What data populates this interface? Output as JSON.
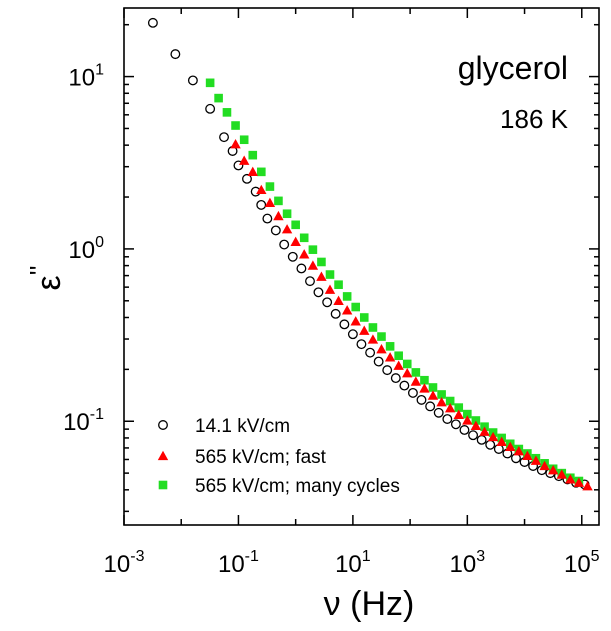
{
  "chart_data": {
    "type": "scatter",
    "xscale": "log",
    "yscale": "log",
    "xlim": [
      0.001,
      200000
    ],
    "ylim": [
      0.025,
      25
    ],
    "xticks": [
      {
        "value": 0.001,
        "base": "10",
        "exp": "-3"
      },
      {
        "value": 0.1,
        "base": "10",
        "exp": "-1"
      },
      {
        "value": 10,
        "base": "10",
        "exp": "1"
      },
      {
        "value": 1000,
        "base": "10",
        "exp": "3"
      },
      {
        "value": 100000,
        "base": "10",
        "exp": "5"
      }
    ],
    "yticks": [
      {
        "value": 0.1,
        "base": "10",
        "exp": "-1"
      },
      {
        "value": 1,
        "base": "10",
        "exp": "0"
      },
      {
        "value": 10,
        "base": "10",
        "exp": "1"
      }
    ],
    "xlabel": "ν (Hz)",
    "ylabel": {
      "base": "ε",
      "sup": "''"
    },
    "annotations": {
      "sample": "glycerol",
      "temperature": "186 K"
    },
    "legend_position": "bottom-left",
    "series": [
      {
        "name": "14.1 kV/cm",
        "marker": "circle-open",
        "color": "#000000",
        "points": [
          [
            0.0032,
            20.5
          ],
          [
            0.0079,
            13.5
          ],
          [
            0.016,
            9.5
          ],
          [
            0.032,
            6.5
          ],
          [
            0.056,
            4.45
          ],
          [
            0.079,
            3.7
          ],
          [
            0.1,
            3.05
          ],
          [
            0.141,
            2.55
          ],
          [
            0.2,
            2.15
          ],
          [
            0.25,
            1.8
          ],
          [
            0.32,
            1.5
          ],
          [
            0.45,
            1.28
          ],
          [
            0.63,
            1.06
          ],
          [
            0.89,
            0.9
          ],
          [
            1.26,
            0.77
          ],
          [
            1.78,
            0.65
          ],
          [
            2.5,
            0.56
          ],
          [
            3.55,
            0.49
          ],
          [
            5,
            0.42
          ],
          [
            7.1,
            0.365
          ],
          [
            10,
            0.32
          ],
          [
            14.1,
            0.28
          ],
          [
            20,
            0.25
          ],
          [
            28.2,
            0.222
          ],
          [
            39.8,
            0.198
          ],
          [
            56.2,
            0.178
          ],
          [
            79.4,
            0.161
          ],
          [
            112,
            0.146
          ],
          [
            158,
            0.133
          ],
          [
            224,
            0.122
          ],
          [
            316,
            0.112
          ],
          [
            447,
            0.103
          ],
          [
            631,
            0.096
          ],
          [
            891,
            0.089
          ],
          [
            1260,
            0.083
          ],
          [
            1780,
            0.078
          ],
          [
            2510,
            0.073
          ],
          [
            3550,
            0.069
          ],
          [
            5010,
            0.065
          ],
          [
            7080,
            0.061
          ],
          [
            10000,
            0.058
          ],
          [
            14100,
            0.055
          ],
          [
            20000,
            0.052
          ],
          [
            28200,
            0.05
          ],
          [
            39800,
            0.048
          ],
          [
            56200,
            0.046
          ],
          [
            79400,
            0.044
          ],
          [
            112000,
            0.043
          ]
        ]
      },
      {
        "name": "565 kV/cm; fast",
        "marker": "triangle-up",
        "color": "#ff0000",
        "points": [
          [
            0.089,
            4.05
          ],
          [
            0.126,
            3.25
          ],
          [
            0.178,
            2.8
          ],
          [
            0.251,
            2.2
          ],
          [
            0.355,
            1.85
          ],
          [
            0.5,
            1.55
          ],
          [
            0.708,
            1.3
          ],
          [
            1,
            1.1
          ],
          [
            1.41,
            0.93
          ],
          [
            2,
            0.8
          ],
          [
            2.82,
            0.69
          ],
          [
            3.98,
            0.58
          ],
          [
            5.62,
            0.5
          ],
          [
            7.94,
            0.44
          ],
          [
            11.2,
            0.38
          ],
          [
            15.8,
            0.335
          ],
          [
            22.4,
            0.298
          ],
          [
            31.6,
            0.262
          ],
          [
            44.7,
            0.235
          ],
          [
            63.1,
            0.21
          ],
          [
            89.1,
            0.19
          ],
          [
            126,
            0.17
          ],
          [
            178,
            0.155
          ],
          [
            251,
            0.141
          ],
          [
            355,
            0.129
          ],
          [
            501,
            0.119
          ],
          [
            708,
            0.109
          ],
          [
            1000,
            0.101
          ],
          [
            1410,
            0.094
          ],
          [
            2000,
            0.087
          ],
          [
            2820,
            0.081
          ],
          [
            3980,
            0.076
          ],
          [
            5620,
            0.071
          ],
          [
            7940,
            0.067
          ],
          [
            11200,
            0.063
          ],
          [
            15800,
            0.059
          ],
          [
            22400,
            0.055
          ],
          [
            31600,
            0.052
          ],
          [
            44700,
            0.049
          ],
          [
            63100,
            0.046
          ],
          [
            89100,
            0.044
          ],
          [
            126000,
            0.042
          ]
        ]
      },
      {
        "name": "565 kV/cm; many cycles",
        "marker": "square",
        "color": "#22dd22",
        "points": [
          [
            0.032,
            9.2
          ],
          [
            0.045,
            7.5
          ],
          [
            0.063,
            6.2
          ],
          [
            0.089,
            5.2
          ],
          [
            0.126,
            4.3
          ],
          [
            0.178,
            3.5
          ],
          [
            0.251,
            2.8
          ],
          [
            0.355,
            2.3
          ],
          [
            0.5,
            1.9
          ],
          [
            0.708,
            1.6
          ],
          [
            1,
            1.38
          ],
          [
            1.41,
            1.16
          ],
          [
            2,
            0.99
          ],
          [
            2.82,
            0.84
          ],
          [
            3.98,
            0.71
          ],
          [
            5.62,
            0.62
          ],
          [
            7.94,
            0.53
          ],
          [
            11.2,
            0.46
          ],
          [
            15.8,
            0.4
          ],
          [
            22.4,
            0.35
          ],
          [
            31.6,
            0.31
          ],
          [
            44.7,
            0.272
          ],
          [
            63.1,
            0.24
          ],
          [
            89.1,
            0.215
          ],
          [
            126,
            0.192
          ],
          [
            178,
            0.173
          ],
          [
            251,
            0.157
          ],
          [
            355,
            0.143
          ],
          [
            501,
            0.131
          ],
          [
            708,
            0.12
          ],
          [
            1000,
            0.11
          ],
          [
            1410,
            0.101
          ],
          [
            2000,
            0.093
          ],
          [
            2820,
            0.086
          ],
          [
            3980,
            0.08
          ],
          [
            5620,
            0.074
          ],
          [
            7940,
            0.069
          ],
          [
            11200,
            0.065
          ],
          [
            15800,
            0.061
          ],
          [
            22400,
            0.057
          ],
          [
            31600,
            0.053
          ],
          [
            44700,
            0.05
          ],
          [
            63100,
            0.047
          ],
          [
            89100,
            0.045
          ]
        ]
      }
    ]
  }
}
